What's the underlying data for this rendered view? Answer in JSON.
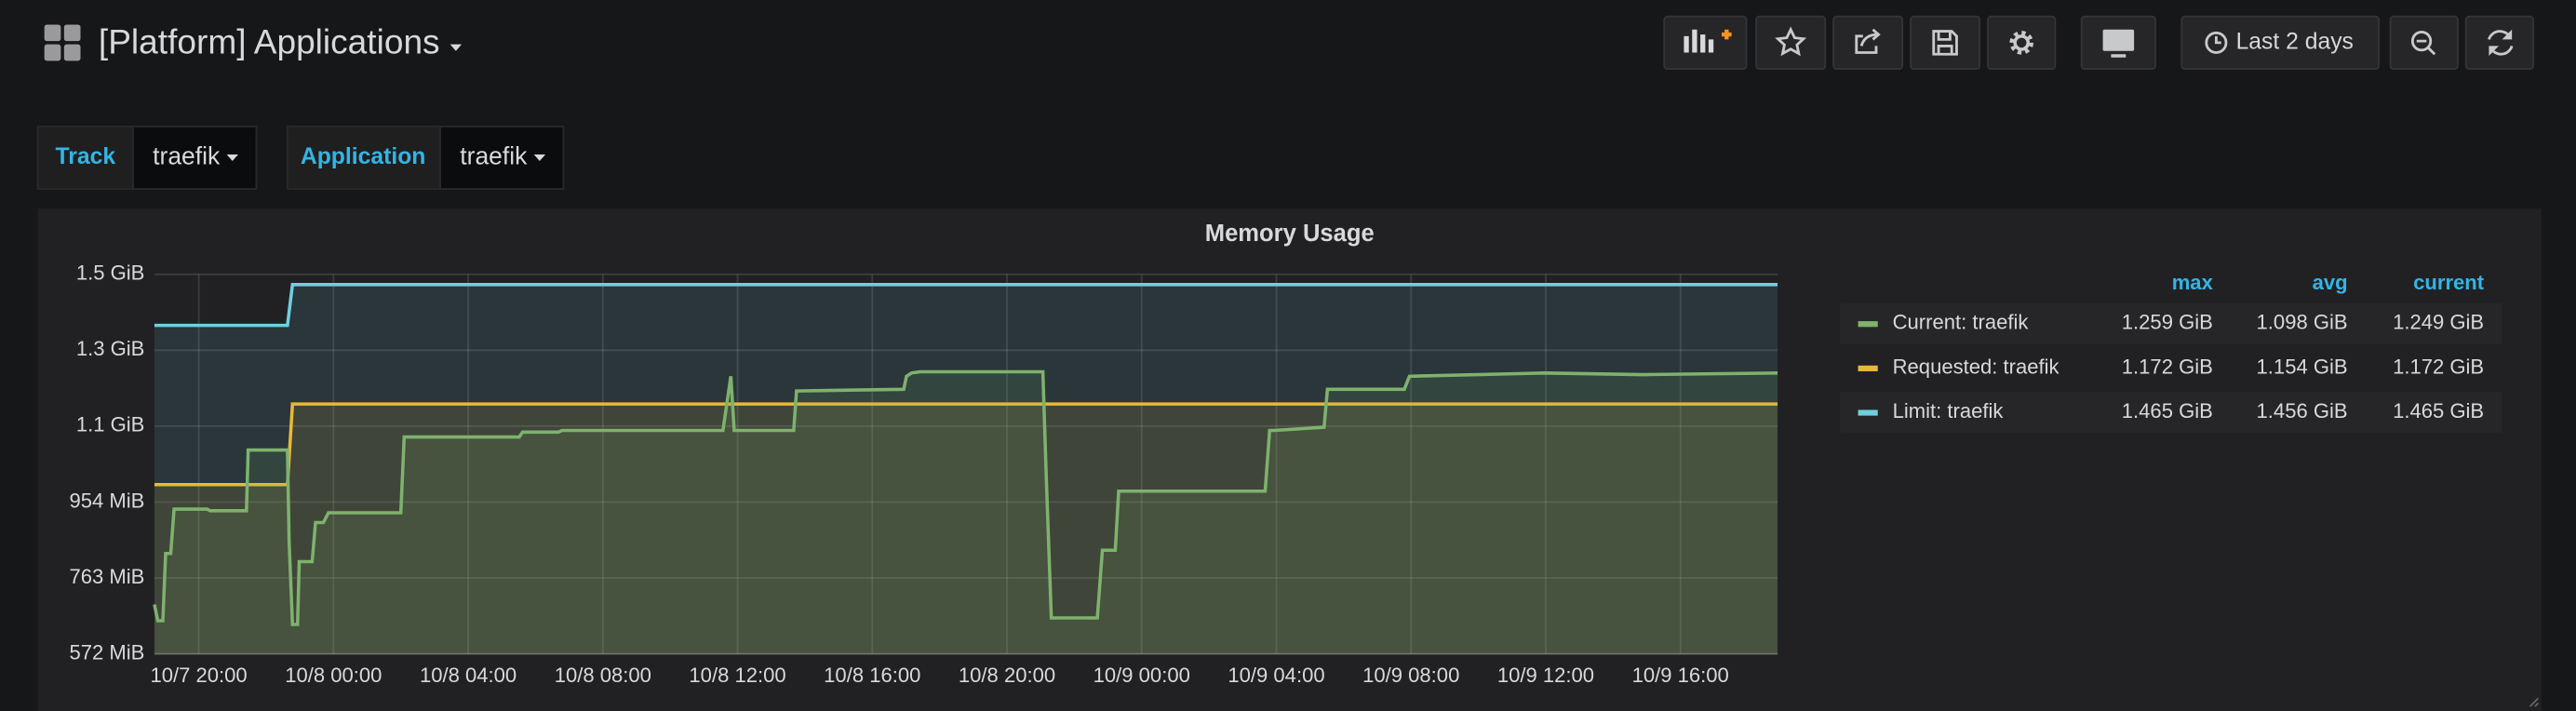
{
  "header": {
    "title": "[Platform] Applications",
    "time_range": "Last 2 days"
  },
  "variables": [
    {
      "label": "Track",
      "value": "traefik"
    },
    {
      "label": "Application",
      "value": "traefik"
    }
  ],
  "chart_data": {
    "type": "line",
    "title": "Memory Usage",
    "xlim": [
      "10/7 18:41",
      "10/9 18:53"
    ],
    "xticks": [
      "10/7 20:00",
      "10/8 00:00",
      "10/8 04:00",
      "10/8 08:00",
      "10/8 12:00",
      "10/8 16:00",
      "10/8 20:00",
      "10/9 00:00",
      "10/9 04:00",
      "10/9 08:00",
      "10/9 12:00",
      "10/9 16:00"
    ],
    "ylim": [
      0.5588,
      1.4901
    ],
    "yticks": [
      {
        "value": 0.5588,
        "label": "572 MiB"
      },
      {
        "value": 0.7451,
        "label": "763 MiB"
      },
      {
        "value": 0.9313,
        "label": "954 MiB"
      },
      {
        "value": 1.1176,
        "label": "1.1 GiB"
      },
      {
        "value": 1.3039,
        "label": "1.3 GiB"
      },
      {
        "value": 1.4901,
        "label": "1.5 GiB"
      }
    ],
    "grid": true,
    "legend": {
      "position": "right",
      "columns": [
        "max",
        "avg",
        "current"
      ]
    },
    "series": [
      {
        "name": "Current: traefik",
        "color": "#7eb26d",
        "x": [
          "10/7 18:41",
          "10/7 18:47",
          "10/7 18:56",
          "10/7 19:01",
          "10/7 19:10",
          "10/7 19:16",
          "10/7 20:15",
          "10/7 20:20",
          "10/7 21:25",
          "10/7 21:28",
          "10/7 22:38",
          "10/7 22:41",
          "10/7 22:47",
          "10/7 22:56",
          "10/7 22:59",
          "10/7 23:22",
          "10/7 23:28",
          "10/7 23:42",
          "10/7 23:51",
          "10/8 02:00",
          "10/8 02:06",
          "10/8 05:31",
          "10/8 05:37",
          "10/8 06:41",
          "10/8 06:47",
          "10/8 11:34",
          "10/8 11:48",
          "10/8 11:54",
          "10/8 13:40",
          "10/8 13:45",
          "10/8 16:56",
          "10/8 17:01",
          "10/8 17:10",
          "10/8 17:25",
          "10/8 21:04",
          "10/8 21:10",
          "10/8 21:19",
          "10/8 22:41",
          "10/8 22:50",
          "10/8 23:13",
          "10/8 23:19",
          "10/9 03:40",
          "10/9 03:48",
          "10/9 03:57",
          "10/9 05:25",
          "10/9 05:31",
          "10/9 07:48",
          "10/9 07:57",
          "10/9 11:57",
          "10/9 14:53",
          "10/9 18:53"
        ],
        "values": [
          0.68,
          0.64,
          0.64,
          0.805,
          0.805,
          0.914,
          0.914,
          0.91,
          0.91,
          1.059,
          1.059,
          0.833,
          0.631,
          0.631,
          0.785,
          0.785,
          0.881,
          0.881,
          0.905,
          0.905,
          1.091,
          1.091,
          1.103,
          1.103,
          1.107,
          1.107,
          1.24,
          1.107,
          1.107,
          1.204,
          1.208,
          1.24,
          1.248,
          1.251,
          1.251,
          0.994,
          0.647,
          0.647,
          0.813,
          0.813,
          0.958,
          0.958,
          1.107,
          1.107,
          1.115,
          1.208,
          1.208,
          1.24,
          1.248,
          1.244,
          1.248
        ],
        "stats": [
          1.259,
          1.098,
          1.249
        ],
        "stats_labels": [
          "1.259 GiB",
          "1.098 GiB",
          "1.249 GiB"
        ]
      },
      {
        "name": "Requested: traefik",
        "color": "#eab839",
        "x": [
          "10/7 18:41",
          "10/7 22:38",
          "10/7 22:47",
          "10/9 18:53"
        ],
        "values": [
          0.974,
          0.974,
          1.172,
          1.172
        ],
        "stats": [
          1.172,
          1.154,
          1.172
        ],
        "stats_labels": [
          "1.172 GiB",
          "1.154 GiB",
          "1.172 GiB"
        ]
      },
      {
        "name": "Limit: traefik",
        "color": "#6ed0e0",
        "x": [
          "10/7 18:41",
          "10/7 22:38",
          "10/7 22:47",
          "10/9 18:53"
        ],
        "values": [
          1.365,
          1.365,
          1.465,
          1.465
        ],
        "stats": [
          1.465,
          1.456,
          1.465
        ],
        "stats_labels": [
          "1.465 GiB",
          "1.456 GiB",
          "1.465 GiB"
        ]
      }
    ]
  }
}
